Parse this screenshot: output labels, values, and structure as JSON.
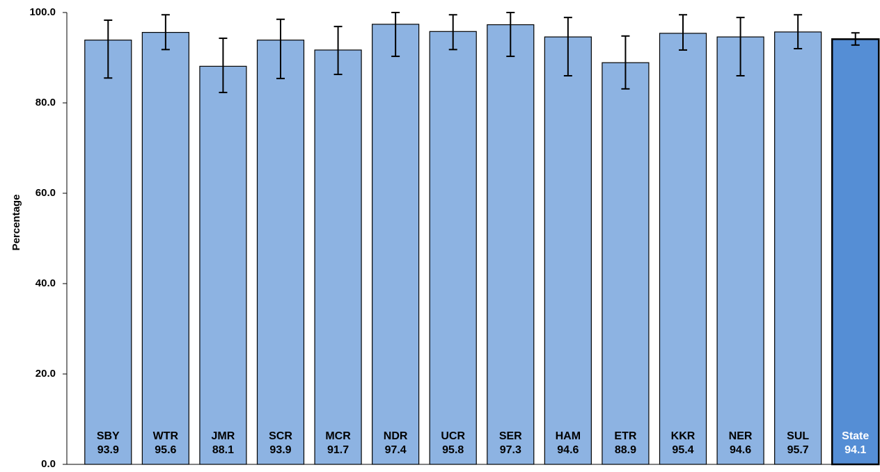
{
  "chart_data": {
    "type": "bar",
    "y_label": "Percentage",
    "categories": [
      "SBY",
      "WTR",
      "JMR",
      "SCR",
      "MCR",
      "NDR",
      "UCR",
      "SER",
      "HAM",
      "ETR",
      "KKR",
      "NER",
      "SUL",
      "State"
    ],
    "values": [
      93.9,
      95.6,
      88.1,
      93.9,
      91.7,
      97.4,
      95.8,
      97.3,
      94.6,
      88.9,
      95.4,
      94.6,
      95.7,
      94.1
    ],
    "ci_lower": [
      85.5,
      91.8,
      82.3,
      85.4,
      86.3,
      90.3,
      91.8,
      90.3,
      86.0,
      83.1,
      91.7,
      86.0,
      92.0,
      92.8
    ],
    "ci_upper": [
      98.3,
      99.5,
      94.3,
      98.5,
      96.9,
      100,
      99.5,
      100,
      98.9,
      94.8,
      99.5,
      98.9,
      99.5,
      95.5
    ],
    "colors": [
      "#8db3e2",
      "#8db3e2",
      "#8db3e2",
      "#8db3e2",
      "#8db3e2",
      "#8db3e2",
      "#8db3e2",
      "#8db3e2",
      "#8db3e2",
      "#8db3e2",
      "#8db3e2",
      "#8db3e2",
      "#8db3e2",
      "#558ed5"
    ],
    "label_colors": [
      "#000000",
      "#000000",
      "#000000",
      "#000000",
      "#000000",
      "#000000",
      "#000000",
      "#000000",
      "#000000",
      "#000000",
      "#000000",
      "#000000",
      "#000000",
      "#ffffff"
    ],
    "ylim": [
      0,
      100
    ],
    "yticks": [
      {
        "value": 0,
        "label": "0.0"
      },
      {
        "value": 20,
        "label": "20.0"
      },
      {
        "value": 40,
        "label": "40.0"
      },
      {
        "value": 60,
        "label": "60.0"
      },
      {
        "value": 80,
        "label": "80.0"
      },
      {
        "value": 100,
        "label": "100.0"
      }
    ],
    "grid": false
  }
}
